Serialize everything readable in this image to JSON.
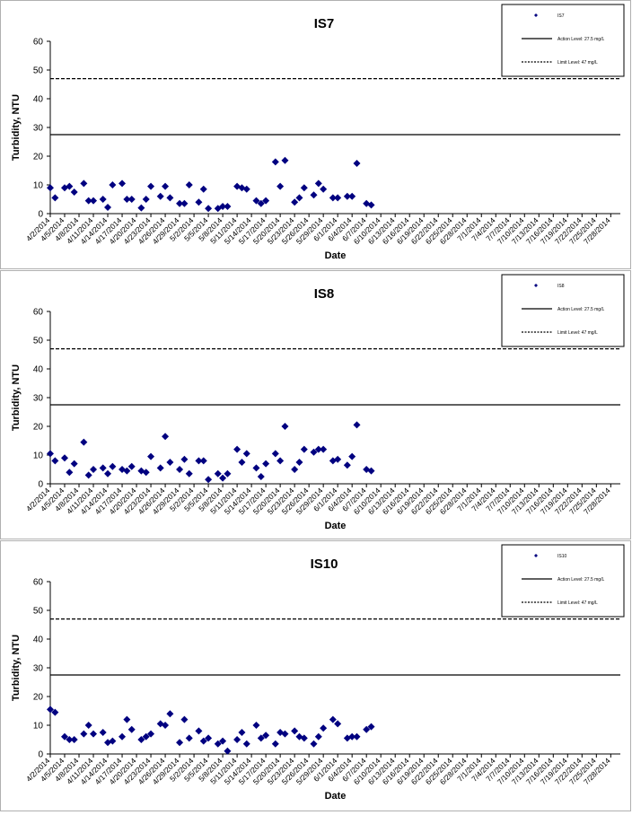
{
  "colors": {
    "marker": "#000080",
    "line": "#000000"
  },
  "chart_data": [
    {
      "type": "scatter",
      "title": "IS7",
      "xlabel": "Date",
      "ylabel": "Turbidity, NTU",
      "ylim": [
        0,
        60
      ],
      "yticks": [
        0,
        10,
        20,
        30,
        40,
        50,
        60
      ],
      "x_start": "4/2/2014",
      "x_end": "7/30/2014",
      "xtick_labels": [
        "4/2/2014",
        "4/5/2014",
        "4/8/2014",
        "4/11/2014",
        "4/14/2014",
        "4/17/2014",
        "4/20/2014",
        "4/23/2014",
        "4/26/2014",
        "4/29/2014",
        "5/2/2014",
        "5/5/2014",
        "5/8/2014",
        "5/11/2014",
        "5/14/2014",
        "5/17/2014",
        "5/20/2014",
        "5/23/2014",
        "5/26/2014",
        "5/29/2014",
        "6/1/2014",
        "6/4/2014",
        "6/7/2014",
        "6/10/2014",
        "6/13/2014",
        "6/16/2014",
        "6/19/2014",
        "6/22/2014",
        "6/25/2014",
        "6/28/2014",
        "7/1/2014",
        "7/4/2014",
        "7/7/2014",
        "7/10/2014",
        "7/13/2014",
        "7/16/2014",
        "7/19/2014",
        "7/22/2014",
        "7/25/2014",
        "7/28/2014"
      ],
      "legend": [
        {
          "label": "IS7",
          "style": "marker"
        },
        {
          "label": "Action Level: 27.5 mg/L",
          "style": "solid"
        },
        {
          "label": "Limit Level: 47 mg/L",
          "style": "dashed"
        }
      ],
      "reference_lines": [
        {
          "name": "Action Level",
          "value": 27.5,
          "style": "solid"
        },
        {
          "name": "Limit Level",
          "value": 47,
          "style": "dashed"
        }
      ],
      "series": [
        {
          "name": "IS7",
          "points": [
            [
              "4/2/2014",
              9
            ],
            [
              "4/3/2014",
              5.5
            ],
            [
              "4/5/2014",
              9
            ],
            [
              "4/6/2014",
              9.5
            ],
            [
              "4/7/2014",
              7.5
            ],
            [
              "4/9/2014",
              10.5
            ],
            [
              "4/10/2014",
              4.5
            ],
            [
              "4/11/2014",
              4.5
            ],
            [
              "4/13/2014",
              5
            ],
            [
              "4/14/2014",
              2.2
            ],
            [
              "4/15/2014",
              10
            ],
            [
              "4/17/2014",
              10.5
            ],
            [
              "4/18/2014",
              5
            ],
            [
              "4/19/2014",
              5
            ],
            [
              "4/21/2014",
              2
            ],
            [
              "4/22/2014",
              5
            ],
            [
              "4/23/2014",
              9.5
            ],
            [
              "4/25/2014",
              6
            ],
            [
              "4/26/2014",
              9.5
            ],
            [
              "4/27/2014",
              5.5
            ],
            [
              "4/29/2014",
              3.5
            ],
            [
              "4/30/2014",
              3.5
            ],
            [
              "5/1/2014",
              10
            ],
            [
              "5/3/2014",
              4
            ],
            [
              "5/4/2014",
              8.5
            ],
            [
              "5/5/2014",
              1.8
            ],
            [
              "5/7/2014",
              1.8
            ],
            [
              "5/8/2014",
              2.5
            ],
            [
              "5/9/2014",
              2.5
            ],
            [
              "5/11/2014",
              9.5
            ],
            [
              "5/12/2014",
              9
            ],
            [
              "5/13/2014",
              8.5
            ],
            [
              "5/15/2014",
              4.5
            ],
            [
              "5/16/2014",
              3.5
            ],
            [
              "5/17/2014",
              4.5
            ],
            [
              "5/19/2014",
              18
            ],
            [
              "5/20/2014",
              9.5
            ],
            [
              "5/21/2014",
              18.5
            ],
            [
              "5/23/2014",
              4
            ],
            [
              "5/24/2014",
              5.5
            ],
            [
              "5/25/2014",
              9
            ],
            [
              "5/27/2014",
              6.5
            ],
            [
              "5/28/2014",
              10.5
            ],
            [
              "5/29/2014",
              8.5
            ],
            [
              "5/31/2014",
              5.5
            ],
            [
              "6/1/2014",
              5.5
            ],
            [
              "6/3/2014",
              6
            ],
            [
              "6/4/2014",
              6
            ],
            [
              "6/5/2014",
              17.5
            ],
            [
              "6/7/2014",
              3.5
            ],
            [
              "6/8/2014",
              3
            ]
          ]
        }
      ]
    },
    {
      "type": "scatter",
      "title": "IS8",
      "xlabel": "Date",
      "ylabel": "Turbidity, NTU",
      "ylim": [
        0,
        60
      ],
      "yticks": [
        0,
        10,
        20,
        30,
        40,
        50,
        60
      ],
      "x_start": "4/2/2014",
      "x_end": "7/30/2014",
      "xtick_labels": [
        "4/2/2014",
        "4/5/2014",
        "4/8/2014",
        "4/11/2014",
        "4/14/2014",
        "4/17/2014",
        "4/20/2014",
        "4/23/2014",
        "4/26/2014",
        "4/29/2014",
        "5/2/2014",
        "5/5/2014",
        "5/8/2014",
        "5/11/2014",
        "5/14/2014",
        "5/17/2014",
        "5/20/2014",
        "5/23/2014",
        "5/26/2014",
        "5/29/2014",
        "6/1/2014",
        "6/4/2014",
        "6/7/2014",
        "6/10/2014",
        "6/13/2014",
        "6/16/2014",
        "6/19/2014",
        "6/22/2014",
        "6/25/2014",
        "6/28/2014",
        "7/1/2014",
        "7/4/2014",
        "7/7/2014",
        "7/10/2014",
        "7/13/2014",
        "7/16/2014",
        "7/19/2014",
        "7/22/2014",
        "7/25/2014",
        "7/28/2014"
      ],
      "legend": [
        {
          "label": "IS8",
          "style": "marker"
        },
        {
          "label": "Action Level: 27.5 mg/L",
          "style": "solid"
        },
        {
          "label": "Limit Level: 47 mg/L",
          "style": "dashed"
        }
      ],
      "reference_lines": [
        {
          "name": "Action Level",
          "value": 27.5,
          "style": "solid"
        },
        {
          "name": "Limit Level",
          "value": 47,
          "style": "dashed"
        }
      ],
      "series": [
        {
          "name": "IS8",
          "points": [
            [
              "4/2/2014",
              10.5
            ],
            [
              "4/3/2014",
              8
            ],
            [
              "4/5/2014",
              9
            ],
            [
              "4/6/2014",
              4
            ],
            [
              "4/7/2014",
              7
            ],
            [
              "4/9/2014",
              14.5
            ],
            [
              "4/10/2014",
              3
            ],
            [
              "4/11/2014",
              5
            ],
            [
              "4/13/2014",
              5.5
            ],
            [
              "4/14/2014",
              3.5
            ],
            [
              "4/15/2014",
              6
            ],
            [
              "4/17/2014",
              5
            ],
            [
              "4/18/2014",
              4.5
            ],
            [
              "4/19/2014",
              6
            ],
            [
              "4/21/2014",
              4.5
            ],
            [
              "4/22/2014",
              4
            ],
            [
              "4/23/2014",
              9.5
            ],
            [
              "4/25/2014",
              5.5
            ],
            [
              "4/26/2014",
              16.5
            ],
            [
              "4/27/2014",
              7.5
            ],
            [
              "4/29/2014",
              5
            ],
            [
              "4/30/2014",
              8.5
            ],
            [
              "5/1/2014",
              3.5
            ],
            [
              "5/3/2014",
              8
            ],
            [
              "5/4/2014",
              8
            ],
            [
              "5/5/2014",
              1.5
            ],
            [
              "5/7/2014",
              3.5
            ],
            [
              "5/8/2014",
              2
            ],
            [
              "5/9/2014",
              3.5
            ],
            [
              "5/11/2014",
              12
            ],
            [
              "5/12/2014",
              7.5
            ],
            [
              "5/13/2014",
              10.5
            ],
            [
              "5/15/2014",
              5.5
            ],
            [
              "5/16/2014",
              2.5
            ],
            [
              "5/17/2014",
              7
            ],
            [
              "5/19/2014",
              10.5
            ],
            [
              "5/20/2014",
              8
            ],
            [
              "5/21/2014",
              20
            ],
            [
              "5/23/2014",
              5
            ],
            [
              "5/24/2014",
              7.5
            ],
            [
              "5/25/2014",
              12
            ],
            [
              "5/27/2014",
              11
            ],
            [
              "5/28/2014",
              12
            ],
            [
              "5/29/2014",
              12
            ],
            [
              "5/31/2014",
              8
            ],
            [
              "6/1/2014",
              8.5
            ],
            [
              "6/3/2014",
              6.5
            ],
            [
              "6/4/2014",
              9.5
            ],
            [
              "6/5/2014",
              20.5
            ],
            [
              "6/7/2014",
              5
            ],
            [
              "6/8/2014",
              4.5
            ]
          ]
        }
      ]
    },
    {
      "type": "scatter",
      "title": "IS10",
      "xlabel": "Date",
      "ylabel": "Turbidity, NTU",
      "ylim": [
        0,
        60
      ],
      "yticks": [
        0,
        10,
        20,
        30,
        40,
        50,
        60
      ],
      "x_start": "4/2/2014",
      "x_end": "7/30/2014",
      "xtick_labels": [
        "4/2/2014",
        "4/5/2014",
        "4/8/2014",
        "4/11/2014",
        "4/14/2014",
        "4/17/2014",
        "4/20/2014",
        "4/23/2014",
        "4/26/2014",
        "4/29/2014",
        "5/2/2014",
        "5/5/2014",
        "5/8/2014",
        "5/11/2014",
        "5/14/2014",
        "5/17/2014",
        "5/20/2014",
        "5/23/2014",
        "5/26/2014",
        "5/29/2014",
        "6/1/2014",
        "6/4/2014",
        "6/7/2014",
        "6/10/2014",
        "6/13/2014",
        "6/16/2014",
        "6/19/2014",
        "6/22/2014",
        "6/25/2014",
        "6/28/2014",
        "7/1/2014",
        "7/4/2014",
        "7/7/2014",
        "7/10/2014",
        "7/13/2014",
        "7/16/2014",
        "7/19/2014",
        "7/22/2014",
        "7/25/2014",
        "7/28/2014"
      ],
      "legend": [
        {
          "label": "IS10",
          "style": "marker"
        },
        {
          "label": "Action Level: 27.5 mg/L",
          "style": "solid"
        },
        {
          "label": "Limit Level: 47 mg/L",
          "style": "dashed"
        }
      ],
      "reference_lines": [
        {
          "name": "Action Level",
          "value": 27.5,
          "style": "solid"
        },
        {
          "name": "Limit Level",
          "value": 47,
          "style": "dashed"
        }
      ],
      "series": [
        {
          "name": "IS10",
          "points": [
            [
              "4/2/2014",
              15.5
            ],
            [
              "4/3/2014",
              14.5
            ],
            [
              "4/5/2014",
              6
            ],
            [
              "4/6/2014",
              5
            ],
            [
              "4/7/2014",
              5
            ],
            [
              "4/9/2014",
              7
            ],
            [
              "4/10/2014",
              10
            ],
            [
              "4/11/2014",
              7
            ],
            [
              "4/13/2014",
              7.5
            ],
            [
              "4/14/2014",
              4
            ],
            [
              "4/15/2014",
              4.5
            ],
            [
              "4/17/2014",
              6
            ],
            [
              "4/18/2014",
              12
            ],
            [
              "4/19/2014",
              8.5
            ],
            [
              "4/21/2014",
              5
            ],
            [
              "4/22/2014",
              6
            ],
            [
              "4/23/2014",
              7
            ],
            [
              "4/25/2014",
              10.5
            ],
            [
              "4/26/2014",
              10
            ],
            [
              "4/27/2014",
              14
            ],
            [
              "4/29/2014",
              4
            ],
            [
              "4/30/2014",
              12
            ],
            [
              "5/1/2014",
              5.5
            ],
            [
              "5/3/2014",
              8
            ],
            [
              "5/4/2014",
              4.5
            ],
            [
              "5/5/2014",
              5.5
            ],
            [
              "5/7/2014",
              3.5
            ],
            [
              "5/8/2014",
              4.5
            ],
            [
              "5/9/2014",
              1
            ],
            [
              "5/11/2014",
              5
            ],
            [
              "5/12/2014",
              7.5
            ],
            [
              "5/13/2014",
              3.5
            ],
            [
              "5/15/2014",
              10
            ],
            [
              "5/16/2014",
              5.5
            ],
            [
              "5/17/2014",
              6.5
            ],
            [
              "5/19/2014",
              3.5
            ],
            [
              "5/20/2014",
              7.5
            ],
            [
              "5/21/2014",
              7
            ],
            [
              "5/23/2014",
              8
            ],
            [
              "5/24/2014",
              6
            ],
            [
              "5/25/2014",
              5.5
            ],
            [
              "5/27/2014",
              3.5
            ],
            [
              "5/28/2014",
              6
            ],
            [
              "5/29/2014",
              9
            ],
            [
              "5/31/2014",
              12
            ],
            [
              "6/1/2014",
              10.5
            ],
            [
              "6/3/2014",
              5.5
            ],
            [
              "6/4/2014",
              6
            ],
            [
              "6/5/2014",
              6
            ],
            [
              "6/7/2014",
              8.5
            ],
            [
              "6/8/2014",
              9.5
            ]
          ]
        }
      ]
    }
  ]
}
